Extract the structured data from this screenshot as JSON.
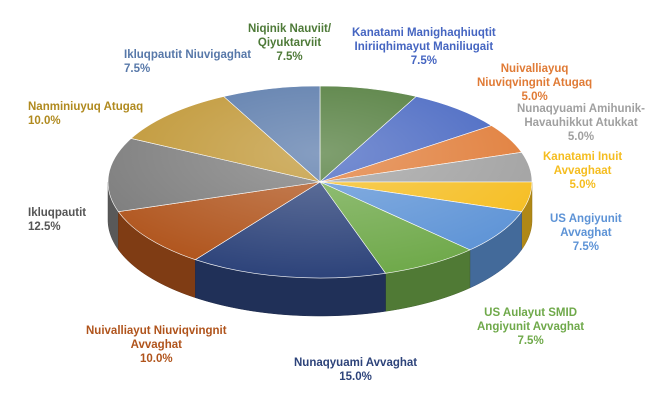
{
  "chart_data": {
    "type": "pie",
    "title": "",
    "style": "3d-tilted-pie",
    "slices": [
      {
        "label": "Niqinik Nauviit/ Qiyuktarviit",
        "value": 7.5,
        "pct_text": "7.5%",
        "color": "#4e7a38"
      },
      {
        "label": "Kanatami Manighaqhiuqtit Iniriiqhimayut Maniliugait",
        "value": 7.5,
        "pct_text": "7.5%",
        "color": "#4565c1"
      },
      {
        "label": "Nuivalliayuq Niuviqvingnit Atugaq",
        "value": 5.0,
        "pct_text": "5.0%",
        "color": "#e07b36"
      },
      {
        "label": "Nunaqyuami Amihunik-Havauhikkut Atukkat",
        "value": 5.0,
        "pct_text": "5.0%",
        "color": "#a0a0a0"
      },
      {
        "label": "Kanatami Inuit Avvaghaat",
        "value": 5.0,
        "pct_text": "5.0%",
        "color": "#f5bd1f"
      },
      {
        "label": "US Angiyunit Avvaghat",
        "value": 7.5,
        "pct_text": "7.5%",
        "color": "#5d93d6"
      },
      {
        "label": "US Aulayut SMID Angiyunit Avvaghat",
        "value": 7.5,
        "pct_text": "7.5%",
        "color": "#6fa94a"
      },
      {
        "label": "Nunaqyuami Avvaghat",
        "value": 15.0,
        "pct_text": "15.0%",
        "color": "#2d437a"
      },
      {
        "label": "Nuivalliayut Niuviqvingnit Avvaghat",
        "value": 10.0,
        "pct_text": "10.0%",
        "color": "#b0541c"
      },
      {
        "label": "Ikluqpautit",
        "value": 12.5,
        "pct_text": "12.5%",
        "color": "#7b7b7b"
      },
      {
        "label": "Nanminiuyuq Atugaq",
        "value": 10.0,
        "pct_text": "10.0%",
        "color": "#bf9532"
      },
      {
        "label": "Ikluqpautit Niuvigaghat",
        "value": 7.5,
        "pct_text": "7.5%",
        "color": "#5778a9"
      }
    ]
  },
  "labels": {
    "s0": {
      "line1": "Niqinik Nauviit/",
      "line2": "Qiyuktarviit",
      "pct": "7.5%",
      "color": "#4e7a38"
    },
    "s1": {
      "line1": "Kanatami Manighaqhiuqtit",
      "line2": "Iniriiqhimayut Maniliugait",
      "pct": "7.5%",
      "color": "#4565c1"
    },
    "s2": {
      "line1": "Nuivalliayuq",
      "line2": "Niuviqvingnit Atugaq",
      "pct": "5.0%",
      "color": "#e07b36"
    },
    "s3": {
      "line1": "Nunaqyuami Amihunik-",
      "line2": "Havauhikkut Atukkat",
      "pct": "5.0%",
      "color": "#a0a0a0"
    },
    "s4": {
      "line1": "Kanatami Inuit",
      "line2": "Avvaghaat",
      "pct": "5.0%",
      "color": "#f5bd1f"
    },
    "s5": {
      "line1": "US Angiyunit",
      "line2": "Avvaghat",
      "pct": "7.5%",
      "color": "#5d93d6"
    },
    "s6": {
      "line1": "US Aulayut SMID",
      "line2": "Angiyunit Avvaghat",
      "pct": "7.5%",
      "color": "#6fa94a"
    },
    "s7": {
      "line1": "Nunaqyuami Avvaghat",
      "pct": "15.0%",
      "color": "#2d437a"
    },
    "s8": {
      "line1": "Nuivalliayut Niuviqvingnit",
      "line2": "Avvaghat",
      "pct": "10.0%",
      "color": "#b0541c"
    },
    "s9": {
      "line1": "Ikluqpautit",
      "pct": "12.5%",
      "color": "#555555"
    },
    "s10": {
      "line1": "Nanminiuyuq Atugaq",
      "pct": "10.0%",
      "color": "#b08a1f"
    },
    "s11": {
      "line1": "Ikluqpautit Niuvigaghat",
      "pct": "7.5%",
      "color": "#5778a9"
    }
  }
}
